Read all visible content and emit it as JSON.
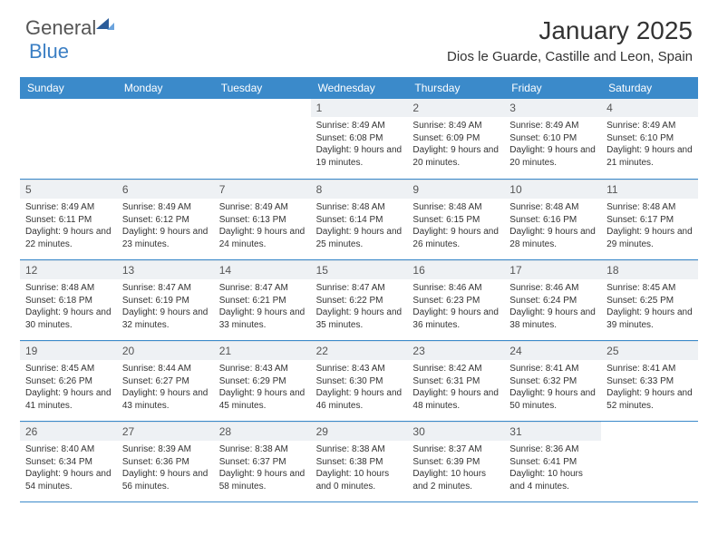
{
  "logo": {
    "textA": "General",
    "textB": "Blue"
  },
  "title": "January 2025",
  "location": "Dios le Guarde, Castille and Leon, Spain",
  "colors": {
    "headerBar": "#3b8aca",
    "dayNumBg": "#eef1f4",
    "weekDivider": "#3b8aca",
    "text": "#333333",
    "logoGray": "#555555",
    "logoBlue": "#3b7fc4"
  },
  "dayHeaders": [
    "Sunday",
    "Monday",
    "Tuesday",
    "Wednesday",
    "Thursday",
    "Friday",
    "Saturday"
  ],
  "weeks": [
    [
      {
        "empty": true
      },
      {
        "empty": true
      },
      {
        "empty": true
      },
      {
        "day": "1",
        "sunrise": "8:49 AM",
        "sunset": "6:08 PM",
        "daylight": "9 hours and 19 minutes."
      },
      {
        "day": "2",
        "sunrise": "8:49 AM",
        "sunset": "6:09 PM",
        "daylight": "9 hours and 20 minutes."
      },
      {
        "day": "3",
        "sunrise": "8:49 AM",
        "sunset": "6:10 PM",
        "daylight": "9 hours and 20 minutes."
      },
      {
        "day": "4",
        "sunrise": "8:49 AM",
        "sunset": "6:10 PM",
        "daylight": "9 hours and 21 minutes."
      }
    ],
    [
      {
        "day": "5",
        "sunrise": "8:49 AM",
        "sunset": "6:11 PM",
        "daylight": "9 hours and 22 minutes."
      },
      {
        "day": "6",
        "sunrise": "8:49 AM",
        "sunset": "6:12 PM",
        "daylight": "9 hours and 23 minutes."
      },
      {
        "day": "7",
        "sunrise": "8:49 AM",
        "sunset": "6:13 PM",
        "daylight": "9 hours and 24 minutes."
      },
      {
        "day": "8",
        "sunrise": "8:48 AM",
        "sunset": "6:14 PM",
        "daylight": "9 hours and 25 minutes."
      },
      {
        "day": "9",
        "sunrise": "8:48 AM",
        "sunset": "6:15 PM",
        "daylight": "9 hours and 26 minutes."
      },
      {
        "day": "10",
        "sunrise": "8:48 AM",
        "sunset": "6:16 PM",
        "daylight": "9 hours and 28 minutes."
      },
      {
        "day": "11",
        "sunrise": "8:48 AM",
        "sunset": "6:17 PM",
        "daylight": "9 hours and 29 minutes."
      }
    ],
    [
      {
        "day": "12",
        "sunrise": "8:48 AM",
        "sunset": "6:18 PM",
        "daylight": "9 hours and 30 minutes."
      },
      {
        "day": "13",
        "sunrise": "8:47 AM",
        "sunset": "6:19 PM",
        "daylight": "9 hours and 32 minutes."
      },
      {
        "day": "14",
        "sunrise": "8:47 AM",
        "sunset": "6:21 PM",
        "daylight": "9 hours and 33 minutes."
      },
      {
        "day": "15",
        "sunrise": "8:47 AM",
        "sunset": "6:22 PM",
        "daylight": "9 hours and 35 minutes."
      },
      {
        "day": "16",
        "sunrise": "8:46 AM",
        "sunset": "6:23 PM",
        "daylight": "9 hours and 36 minutes."
      },
      {
        "day": "17",
        "sunrise": "8:46 AM",
        "sunset": "6:24 PM",
        "daylight": "9 hours and 38 minutes."
      },
      {
        "day": "18",
        "sunrise": "8:45 AM",
        "sunset": "6:25 PM",
        "daylight": "9 hours and 39 minutes."
      }
    ],
    [
      {
        "day": "19",
        "sunrise": "8:45 AM",
        "sunset": "6:26 PM",
        "daylight": "9 hours and 41 minutes."
      },
      {
        "day": "20",
        "sunrise": "8:44 AM",
        "sunset": "6:27 PM",
        "daylight": "9 hours and 43 minutes."
      },
      {
        "day": "21",
        "sunrise": "8:43 AM",
        "sunset": "6:29 PM",
        "daylight": "9 hours and 45 minutes."
      },
      {
        "day": "22",
        "sunrise": "8:43 AM",
        "sunset": "6:30 PM",
        "daylight": "9 hours and 46 minutes."
      },
      {
        "day": "23",
        "sunrise": "8:42 AM",
        "sunset": "6:31 PM",
        "daylight": "9 hours and 48 minutes."
      },
      {
        "day": "24",
        "sunrise": "8:41 AM",
        "sunset": "6:32 PM",
        "daylight": "9 hours and 50 minutes."
      },
      {
        "day": "25",
        "sunrise": "8:41 AM",
        "sunset": "6:33 PM",
        "daylight": "9 hours and 52 minutes."
      }
    ],
    [
      {
        "day": "26",
        "sunrise": "8:40 AM",
        "sunset": "6:34 PM",
        "daylight": "9 hours and 54 minutes."
      },
      {
        "day": "27",
        "sunrise": "8:39 AM",
        "sunset": "6:36 PM",
        "daylight": "9 hours and 56 minutes."
      },
      {
        "day": "28",
        "sunrise": "8:38 AM",
        "sunset": "6:37 PM",
        "daylight": "9 hours and 58 minutes."
      },
      {
        "day": "29",
        "sunrise": "8:38 AM",
        "sunset": "6:38 PM",
        "daylight": "10 hours and 0 minutes."
      },
      {
        "day": "30",
        "sunrise": "8:37 AM",
        "sunset": "6:39 PM",
        "daylight": "10 hours and 2 minutes."
      },
      {
        "day": "31",
        "sunrise": "8:36 AM",
        "sunset": "6:41 PM",
        "daylight": "10 hours and 4 minutes."
      },
      {
        "empty": true
      }
    ]
  ],
  "labels": {
    "sunrise": "Sunrise:",
    "sunset": "Sunset:",
    "daylight": "Daylight:"
  }
}
